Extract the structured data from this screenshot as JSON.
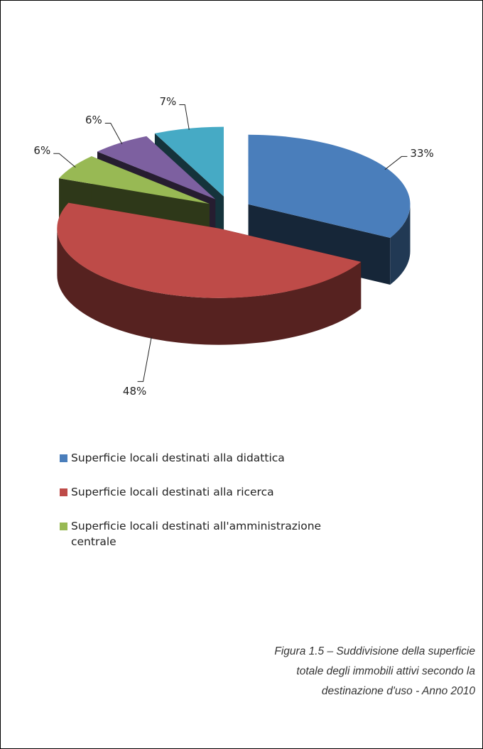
{
  "chart_data": {
    "type": "pie",
    "categories": [
      "Superficie locali destinati alla didattica",
      "Superficie locali destinati alla ricerca",
      "Superficie locali destinati all'amministrazione centrale",
      null,
      null
    ],
    "values": [
      33,
      48,
      6,
      6,
      7
    ],
    "value_labels": [
      "33%",
      "48%",
      "6%",
      "6%",
      "7%"
    ],
    "colors": [
      "#4a7ebb",
      "#be4b48",
      "#98b954",
      "#7d60a0",
      "#46aac5"
    ],
    "legend": "bottom-left"
  },
  "caption": {
    "lines": [
      "Figura 1.5 – Suddivisione della superficie",
      "totale degli immobili attivi secondo la",
      "destinazione d'uso - Anno 2010"
    ]
  }
}
